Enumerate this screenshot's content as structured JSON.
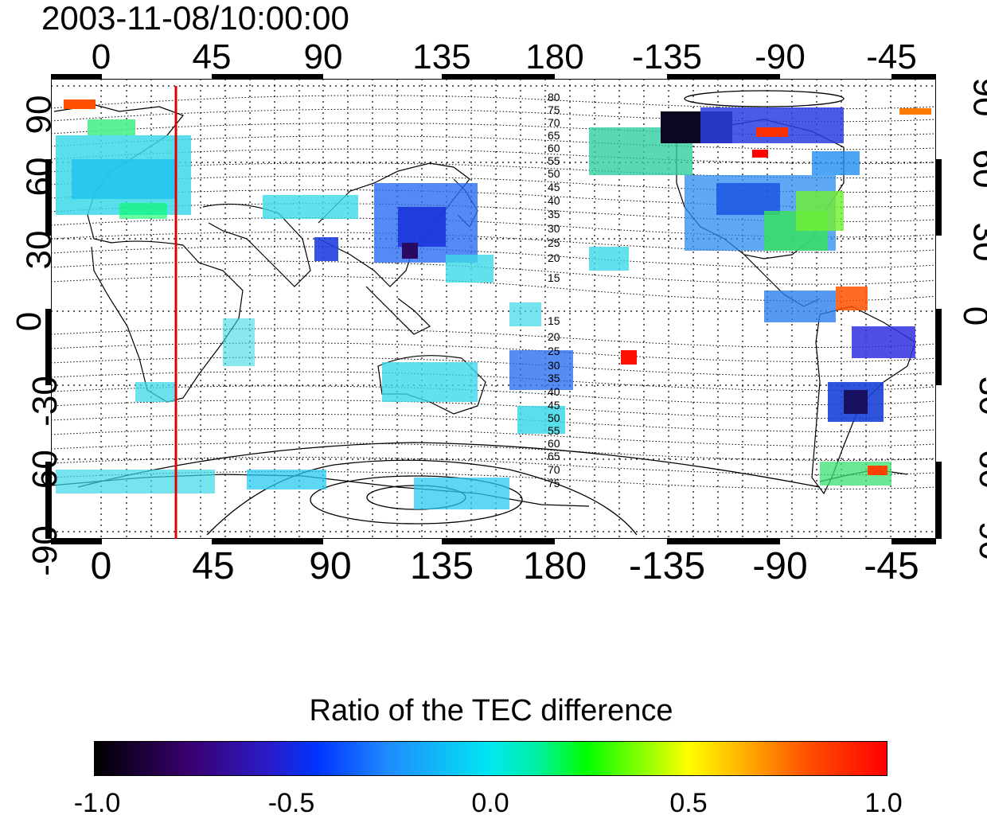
{
  "timestamp": "2003-11-08/10:00:00",
  "top_longitude_labels": [
    "0",
    "45",
    "90",
    "135",
    "180",
    "-135",
    "-90",
    "-45"
  ],
  "bottom_longitude_labels": [
    "0",
    "45",
    "90",
    "135",
    "180",
    "-135",
    "-90",
    "-45"
  ],
  "latitude_labels": [
    "90",
    "60",
    "30",
    "0",
    "-30",
    "-60",
    "-90"
  ],
  "contour_labels_north": [
    "80",
    "75",
    "70",
    "65",
    "60",
    "55",
    "50",
    "45",
    "40",
    "35",
    "30",
    "25",
    "20",
    "15"
  ],
  "contour_labels_south": [
    "15",
    "20",
    "25",
    "30",
    "35",
    "40",
    "45",
    "50",
    "55",
    "60",
    "65",
    "70",
    "75"
  ],
  "colorbar": {
    "title": "Ratio of the TEC difference",
    "tick_labels": [
      "-1.0",
      "-0.5",
      "0.0",
      "0.5",
      "1.0"
    ],
    "min": -1.0,
    "max": 1.0
  },
  "map": {
    "projection": "equirectangular",
    "longitude_range_center": 0,
    "grid": true,
    "marker_line_longitude": 30,
    "marker_line_color": "#e00000"
  }
}
